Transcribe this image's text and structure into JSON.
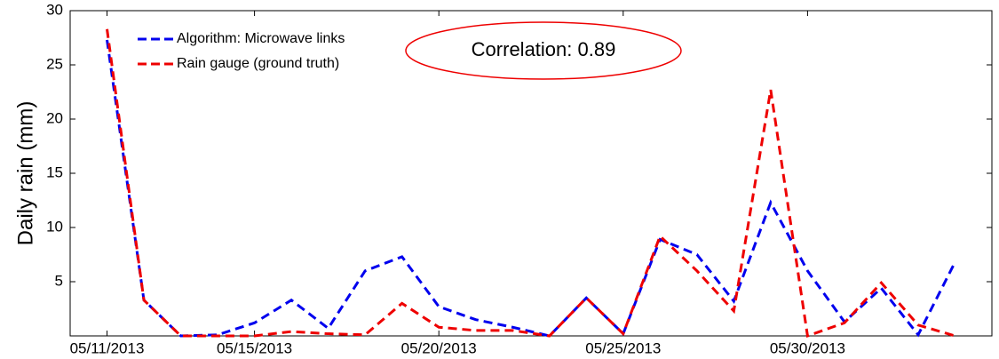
{
  "chart_data": {
    "type": "line",
    "y_label": "Daily rain (mm)",
    "annotation": "Correlation: 0.89",
    "x": [
      "2013-05-11",
      "2013-05-12",
      "2013-05-13",
      "2013-05-14",
      "2013-05-15",
      "2013-05-16",
      "2013-05-17",
      "2013-05-18",
      "2013-05-19",
      "2013-05-20",
      "2013-05-21",
      "2013-05-22",
      "2013-05-23",
      "2013-05-24",
      "2013-05-25",
      "2013-05-26",
      "2013-05-27",
      "2013-05-28",
      "2013-05-29",
      "2013-05-30",
      "2013-05-31",
      "2013-06-01",
      "2013-06-02",
      "2013-06-03"
    ],
    "series": [
      {
        "name": "Algorithm: Microwave links",
        "color": "#0000ee",
        "values": [
          27.3,
          3.3,
          0,
          0.1,
          1.2,
          3.3,
          0.7,
          6,
          7.3,
          2.7,
          1.5,
          0.8,
          0,
          3.5,
          0.2,
          8.9,
          7.5,
          3.2,
          12.3,
          6,
          1.3,
          4.4,
          0.1,
          6.8
        ]
      },
      {
        "name": "Rain gauge (ground truth)",
        "color": "#ee0000",
        "values": [
          28.3,
          3.3,
          0,
          0,
          0,
          0.4,
          0.2,
          0.1,
          3,
          0.8,
          0.5,
          0.5,
          0,
          3.5,
          0.2,
          9.2,
          6,
          2.3,
          22.7,
          0,
          1.2,
          4.9,
          1,
          0
        ]
      }
    ],
    "xlim": [
      "2013-05-10",
      "2013-06-04"
    ],
    "xticks": [
      {
        "value": "2013-05-11",
        "label": "05/11/2013"
      },
      {
        "value": "2013-05-15",
        "label": "05/15/2013"
      },
      {
        "value": "2013-05-20",
        "label": "05/20/2013"
      },
      {
        "value": "2013-05-25",
        "label": "05/25/2013"
      },
      {
        "value": "2013-05-30",
        "label": "05/30/2013"
      }
    ],
    "ylim": [
      0,
      30
    ],
    "yticks": [
      5,
      10,
      15,
      20,
      25,
      30
    ],
    "grid": false,
    "legend": "upper left"
  }
}
